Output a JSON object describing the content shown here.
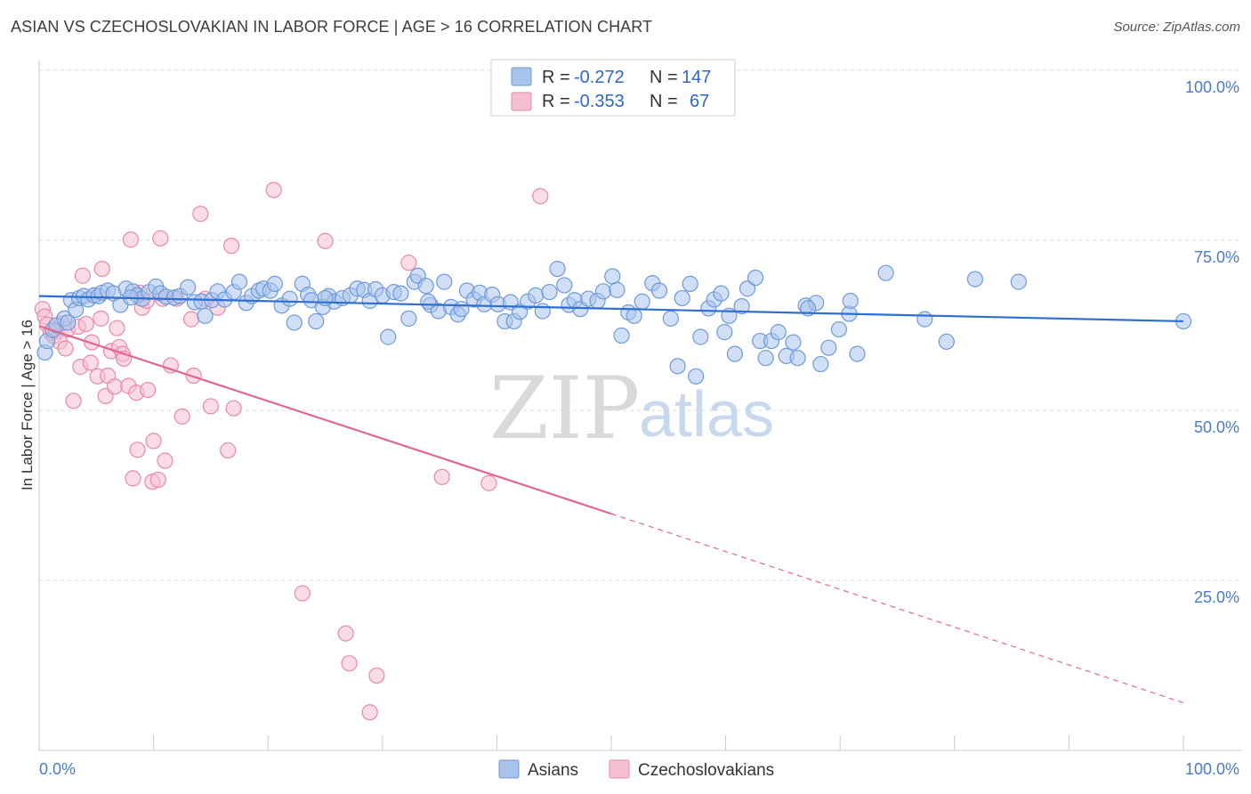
{
  "title": "ASIAN VS CZECHOSLOVAKIAN IN LABOR FORCE | AGE > 16 CORRELATION CHART",
  "source": "Source: ZipAtlas.com",
  "watermark": {
    "zip": "ZIP",
    "atlas": "atlas"
  },
  "colors": {
    "asian_fill": "#a9c4ec",
    "asian_stroke": "#6f9ad8",
    "asian_line": "#2f6fd0",
    "czech_fill": "#f6bfd0",
    "czech_stroke": "#e88aa8",
    "czech_line": "#e3668f",
    "grid": "#dcdcdc",
    "axis_text": "#4a7bc8"
  },
  "legend": {
    "rows": [
      {
        "r_label": "R =",
        "r_value": "-0.272",
        "n_label": "N =",
        "n_value": "147"
      },
      {
        "r_label": "R =",
        "r_value": "-0.353",
        "n_label": "N =",
        "n_value": "67"
      }
    ]
  },
  "bottom_legend": [
    "Asians",
    "Czechoslovakians"
  ],
  "chart_data": {
    "type": "scatter",
    "xlabel": "",
    "ylabel": "In Labor Force | Age > 16",
    "xlim": [
      0,
      100
    ],
    "ylim": [
      0,
      100
    ],
    "x_tick_labels": [
      "0.0%",
      "100.0%"
    ],
    "y_tick_labels": [
      "100.0%",
      "75.0%",
      "50.0%",
      "25.0%"
    ],
    "y_ticks": [
      100,
      75,
      50,
      25
    ],
    "grid": true,
    "legend_position": "top-center",
    "series": [
      {
        "name": "Asians",
        "trend": {
          "x": [
            0,
            100
          ],
          "y": [
            66.8,
            63.1
          ],
          "dashed_to": null
        },
        "points": [
          [
            0.5,
            58.5
          ],
          [
            0.7,
            60.2
          ],
          [
            1.2,
            61.8
          ],
          [
            1.5,
            62.5
          ],
          [
            2.2,
            63.5
          ],
          [
            2.5,
            62.9
          ],
          [
            2.8,
            66.2
          ],
          [
            3.2,
            64.8
          ],
          [
            3.5,
            66.5
          ],
          [
            3.9,
            66.8
          ],
          [
            4.3,
            66.3
          ],
          [
            4.8,
            66.9
          ],
          [
            5.2,
            66.8
          ],
          [
            5.5,
            67.3
          ],
          [
            6.0,
            67.6
          ],
          [
            6.5,
            67.2
          ],
          [
            7.1,
            65.5
          ],
          [
            7.6,
            67.9
          ],
          [
            8.2,
            67.5
          ],
          [
            8.6,
            66.9
          ],
          [
            9.0,
            66.4
          ],
          [
            9.6,
            67.4
          ],
          [
            10.2,
            68.2
          ],
          [
            10.6,
            67.2
          ],
          [
            11.1,
            66.7
          ],
          [
            11.8,
            66.6
          ],
          [
            12.3,
            66.8
          ],
          [
            13.0,
            68.1
          ],
          [
            13.6,
            65.9
          ],
          [
            14.2,
            66.0
          ],
          [
            14.5,
            63.9
          ],
          [
            15.1,
            66.2
          ],
          [
            15.6,
            67.5
          ],
          [
            16.2,
            66.3
          ],
          [
            17.0,
            67.4
          ],
          [
            17.5,
            68.9
          ],
          [
            18.1,
            65.8
          ],
          [
            18.6,
            66.8
          ],
          [
            19.2,
            67.6
          ],
          [
            19.6,
            67.9
          ],
          [
            20.2,
            67.6
          ],
          [
            20.6,
            68.6
          ],
          [
            21.2,
            65.4
          ],
          [
            21.9,
            66.4
          ],
          [
            22.3,
            62.9
          ],
          [
            23.0,
            68.6
          ],
          [
            23.5,
            67.0
          ],
          [
            23.8,
            66.2
          ],
          [
            24.2,
            63.1
          ],
          [
            24.8,
            65.2
          ],
          [
            25.3,
            66.8
          ],
          [
            25.8,
            66.0
          ],
          [
            26.5,
            66.5
          ],
          [
            27.2,
            66.9
          ],
          [
            27.8,
            67.9
          ],
          [
            28.4,
            67.7
          ],
          [
            28.9,
            66.1
          ],
          [
            29.4,
            67.8
          ],
          [
            30.0,
            66.9
          ],
          [
            30.5,
            60.8
          ],
          [
            31.0,
            67.4
          ],
          [
            31.6,
            67.2
          ],
          [
            32.3,
            63.5
          ],
          [
            32.8,
            68.9
          ],
          [
            33.1,
            69.8
          ],
          [
            33.8,
            68.3
          ],
          [
            34.2,
            65.5
          ],
          [
            34.9,
            64.6
          ],
          [
            35.4,
            68.9
          ],
          [
            36.0,
            65.2
          ],
          [
            36.6,
            64.1
          ],
          [
            36.9,
            64.9
          ],
          [
            37.4,
            67.6
          ],
          [
            38.0,
            66.3
          ],
          [
            38.5,
            67.3
          ],
          [
            38.9,
            65.6
          ],
          [
            39.6,
            67.0
          ],
          [
            40.1,
            65.6
          ],
          [
            40.7,
            63.1
          ],
          [
            41.2,
            65.9
          ],
          [
            41.5,
            63.1
          ],
          [
            42.0,
            64.5
          ],
          [
            42.7,
            66.0
          ],
          [
            43.4,
            66.9
          ],
          [
            44.0,
            64.6
          ],
          [
            44.6,
            67.4
          ],
          [
            45.3,
            70.8
          ],
          [
            45.9,
            68.4
          ],
          [
            46.3,
            65.5
          ],
          [
            46.8,
            66.2
          ],
          [
            47.3,
            64.9
          ],
          [
            48.0,
            66.4
          ],
          [
            48.8,
            66.1
          ],
          [
            49.3,
            67.5
          ],
          [
            50.1,
            69.7
          ],
          [
            50.5,
            67.7
          ],
          [
            50.9,
            61.0
          ],
          [
            51.5,
            64.4
          ],
          [
            52.0,
            63.9
          ],
          [
            52.7,
            66.0
          ],
          [
            53.6,
            68.7
          ],
          [
            54.2,
            67.6
          ],
          [
            55.2,
            63.5
          ],
          [
            55.8,
            56.5
          ],
          [
            56.2,
            66.5
          ],
          [
            56.9,
            68.6
          ],
          [
            57.4,
            55.0
          ],
          [
            57.8,
            60.8
          ],
          [
            58.5,
            65.0
          ],
          [
            59.0,
            66.3
          ],
          [
            59.6,
            67.2
          ],
          [
            59.9,
            61.5
          ],
          [
            60.3,
            63.9
          ],
          [
            60.8,
            58.3
          ],
          [
            61.4,
            65.3
          ],
          [
            61.9,
            67.9
          ],
          [
            62.6,
            69.5
          ],
          [
            63.0,
            60.2
          ],
          [
            63.5,
            57.7
          ],
          [
            64.0,
            60.2
          ],
          [
            64.6,
            61.5
          ],
          [
            65.3,
            58.0
          ],
          [
            65.9,
            60.0
          ],
          [
            66.3,
            57.7
          ],
          [
            67.0,
            65.4
          ],
          [
            67.9,
            65.8
          ],
          [
            68.3,
            56.8
          ],
          [
            69.0,
            59.2
          ],
          [
            69.9,
            61.9
          ],
          [
            70.8,
            64.2
          ],
          [
            71.5,
            58.3
          ],
          [
            74.0,
            70.2
          ],
          [
            77.4,
            63.4
          ],
          [
            79.3,
            60.1
          ],
          [
            81.8,
            69.3
          ],
          [
            85.6,
            68.9
          ],
          [
            100.0,
            63.1
          ],
          [
            70.9,
            66.1
          ],
          [
            67.2,
            65.0
          ],
          [
            34.0,
            66.0
          ],
          [
            25.0,
            66.5
          ],
          [
            8.0,
            66.6
          ]
        ]
      },
      {
        "name": "Czechoslovakians",
        "trend": {
          "x": [
            0,
            50
          ],
          "y": [
            62.4,
            34.8
          ],
          "dashed_to": [
            100,
            7.0
          ]
        },
        "points": [
          [
            0.3,
            64.9
          ],
          [
            0.5,
            63.8
          ],
          [
            0.7,
            62.6
          ],
          [
            1.0,
            61.5
          ],
          [
            1.3,
            60.9
          ],
          [
            1.5,
            61.6
          ],
          [
            1.8,
            60.1
          ],
          [
            2.0,
            62.8
          ],
          [
            2.3,
            59.1
          ],
          [
            2.5,
            61.9
          ],
          [
            3.0,
            51.4
          ],
          [
            3.4,
            62.3
          ],
          [
            3.6,
            56.4
          ],
          [
            3.8,
            69.8
          ],
          [
            4.1,
            62.7
          ],
          [
            4.5,
            57.0
          ],
          [
            4.6,
            60.0
          ],
          [
            4.8,
            66.9
          ],
          [
            5.1,
            55.0
          ],
          [
            5.4,
            63.5
          ],
          [
            5.5,
            70.8
          ],
          [
            5.8,
            52.1
          ],
          [
            6.0,
            55.1
          ],
          [
            6.3,
            58.7
          ],
          [
            6.6,
            53.5
          ],
          [
            6.8,
            62.1
          ],
          [
            7.0,
            59.3
          ],
          [
            7.3,
            58.3
          ],
          [
            7.4,
            57.6
          ],
          [
            7.8,
            53.6
          ],
          [
            8.0,
            75.1
          ],
          [
            8.2,
            40.0
          ],
          [
            8.5,
            52.6
          ],
          [
            8.6,
            44.2
          ],
          [
            8.8,
            67.3
          ],
          [
            9.0,
            65.1
          ],
          [
            9.4,
            66.1
          ],
          [
            9.5,
            53.0
          ],
          [
            9.9,
            39.5
          ],
          [
            10.0,
            45.5
          ],
          [
            10.4,
            39.8
          ],
          [
            10.6,
            75.3
          ],
          [
            10.8,
            66.4
          ],
          [
            11.0,
            42.6
          ],
          [
            11.5,
            56.6
          ],
          [
            12.0,
            66.4
          ],
          [
            12.5,
            49.1
          ],
          [
            13.3,
            63.4
          ],
          [
            13.5,
            55.1
          ],
          [
            14.1,
            78.9
          ],
          [
            14.5,
            66.4
          ],
          [
            15.0,
            50.6
          ],
          [
            15.6,
            65.1
          ],
          [
            16.5,
            44.1
          ],
          [
            16.8,
            74.2
          ],
          [
            17.0,
            50.3
          ],
          [
            20.5,
            82.4
          ],
          [
            23.0,
            23.1
          ],
          [
            25.0,
            74.9
          ],
          [
            26.8,
            17.2
          ],
          [
            27.1,
            12.8
          ],
          [
            28.9,
            5.6
          ],
          [
            29.5,
            11.0
          ],
          [
            32.3,
            71.7
          ],
          [
            35.2,
            40.2
          ],
          [
            39.3,
            39.3
          ],
          [
            43.8,
            81.5
          ]
        ]
      }
    ]
  }
}
